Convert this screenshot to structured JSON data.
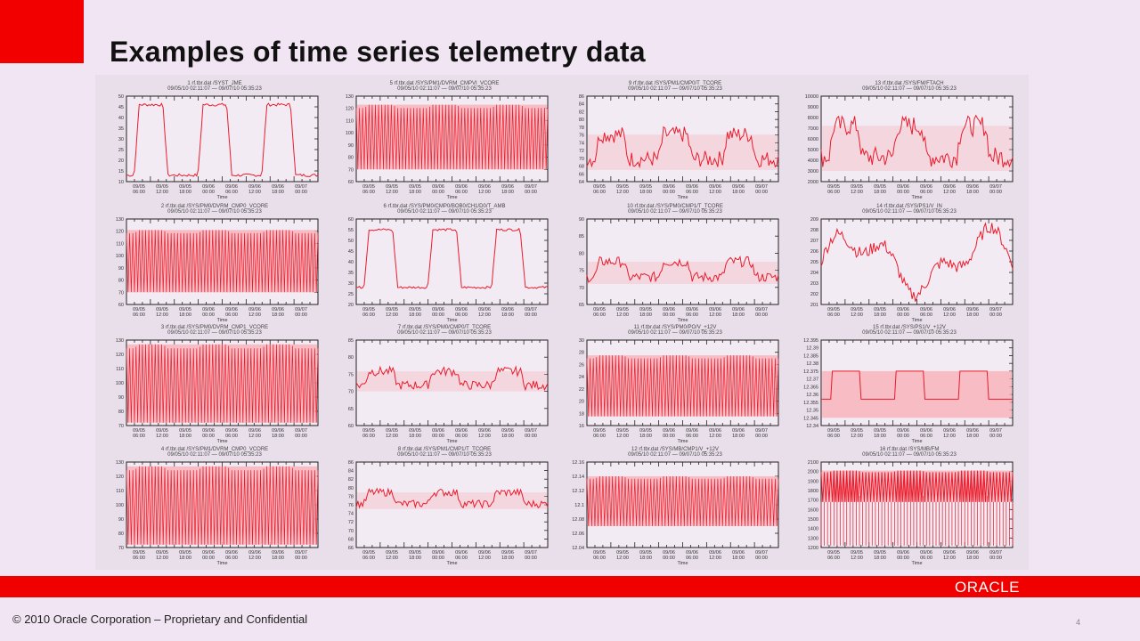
{
  "slide": {
    "title": "Examples of time series telemetry data",
    "footer": "© 2010 Oracle Corporation – Proprietary and Confidential",
    "logo": "ORACLE",
    "page_number": "4",
    "accent_color": "#f10000"
  },
  "chart_data": [
    {
      "id": 1,
      "type": "line",
      "title": "1  rf.tbr.dat  /SYST_JME",
      "subtitle": "09/05/10 02:11:07  —  09/07/10 05:35:23",
      "xlabel": "Time",
      "ylim": [
        10,
        50
      ],
      "yticks": [
        "10",
        "15",
        "20",
        "25",
        "30",
        "35",
        "40",
        "45",
        "50"
      ],
      "xticks": [
        "09/05 06:00",
        "09/05 12:00",
        "09/05 18:00",
        "09/06 00:00",
        "09/06 06:00",
        "09/06 12:00",
        "09/06 18:00",
        "09/07 00:00"
      ],
      "pattern": "square",
      "low": 13,
      "high": 46
    },
    {
      "id": 5,
      "type": "line",
      "title": "5  rf.tbr.dat  /SYS/PM1/DVRM_CMPVI_VCORE",
      "subtitle": "09/05/10 02:11:07  —  09/07/10 05:35:23",
      "xlabel": "Time",
      "ylim": [
        60,
        130
      ],
      "yticks": [
        "60",
        "70",
        "80",
        "90",
        "100",
        "110",
        "120",
        "130"
      ],
      "xticks": [
        "09/05 06:00",
        "09/05 12:00",
        "09/05 18:00",
        "09/06 00:00",
        "09/06 06:00",
        "09/06 12:00",
        "09/06 18:00",
        "09/07 00:00"
      ],
      "pattern": "dense",
      "low": 70,
      "high": 123
    },
    {
      "id": 9,
      "type": "line",
      "title": "9  rf.tbr.dat  /SYS/PM1/CMP0/T_TCORE",
      "subtitle": "09/05/10 02:11:07  —  09/07/10 05:35:23",
      "xlabel": "Time",
      "ylim": [
        64,
        86
      ],
      "yticks": [
        "64",
        "66",
        "68",
        "70",
        "72",
        "74",
        "76",
        "78",
        "80",
        "82",
        "84",
        "86"
      ],
      "xticks": [
        "09/05 06:00",
        "09/05 12:00",
        "09/05 18:00",
        "09/06 00:00",
        "09/06 06:00",
        "09/06 12:00",
        "09/06 18:00",
        "09/07 00:00"
      ],
      "pattern": "band",
      "low": 67,
      "high": 81
    },
    {
      "id": 13,
      "type": "line",
      "title": "13  rf.tbr.dat  /SYS/FM/FTACH",
      "subtitle": "09/05/10 02:11:07  —  09/07/10 05:35:23",
      "xlabel": "Time",
      "ylim": [
        2000,
        10000
      ],
      "yticks": [
        "2000",
        "3000",
        "4000",
        "5000",
        "6000",
        "7000",
        "8000",
        "9000",
        "10000"
      ],
      "xticks": [
        "09/05 06:00",
        "09/05 12:00",
        "09/05 18:00",
        "09/06 00:00",
        "09/06 06:00",
        "09/06 12:00",
        "09/06 18:00",
        "09/07 00:00"
      ],
      "pattern": "band",
      "low": 3000,
      "high": 9500
    },
    {
      "id": 2,
      "type": "line",
      "title": "2  rf.tbr.dat  /SYS/PM0/DVRM_CMP0_VCORE",
      "subtitle": "09/05/10 02:11:07  —  09/07/10 05:35:23",
      "xlabel": "Time",
      "ylim": [
        60,
        130
      ],
      "yticks": [
        "60",
        "70",
        "80",
        "90",
        "100",
        "110",
        "120",
        "130"
      ],
      "xticks": [
        "09/05 06:00",
        "09/05 12:00",
        "09/05 18:00",
        "09/06 00:00",
        "09/06 06:00",
        "09/06 12:00",
        "09/06 18:00",
        "09/07 00:00"
      ],
      "pattern": "dense",
      "low": 70,
      "high": 121
    },
    {
      "id": 6,
      "type": "line",
      "title": "6  rf.tbr.dat  /SYS/PM0/CMP0/BOB0/CH1/D0/T_AMB",
      "subtitle": "09/05/10 02:11:07  —  09/07/10 05:35:23",
      "xlabel": "Time",
      "ylim": [
        20,
        60
      ],
      "yticks": [
        "20",
        "25",
        "30",
        "35",
        "40",
        "45",
        "50",
        "55",
        "60"
      ],
      "xticks": [
        "09/05 06:00",
        "09/05 12:00",
        "09/05 18:00",
        "09/06 00:00",
        "09/06 06:00",
        "09/06 12:00",
        "09/06 18:00",
        "09/07 00:00"
      ],
      "pattern": "square",
      "low": 28,
      "high": 55
    },
    {
      "id": 10,
      "type": "line",
      "title": "10  rf.tbr.dat  /SYS/PM0/CMP1/T_TCORE",
      "subtitle": "09/05/10 02:11:07  —  09/07/10 05:35:23",
      "xlabel": "Time",
      "ylim": [
        65,
        90
      ],
      "yticks": [
        "65",
        "70",
        "75",
        "80",
        "85",
        "90"
      ],
      "xticks": [
        "09/05 06:00",
        "09/05 12:00",
        "09/05 18:00",
        "09/06 00:00",
        "09/06 06:00",
        "09/06 12:00",
        "09/06 18:00",
        "09/07 00:00"
      ],
      "pattern": "band",
      "low": 71,
      "high": 81
    },
    {
      "id": 14,
      "type": "line",
      "title": "14  rf.tbr.dat  /SYS/PS1/V_IN",
      "subtitle": "09/05/10 02:11:07  —  09/07/10 05:35:23",
      "xlabel": "Time",
      "ylim": [
        201,
        209
      ],
      "yticks": [
        "201",
        "202",
        "203",
        "204",
        "205",
        "206",
        "207",
        "208",
        "209"
      ],
      "xticks": [
        "09/05 06:00",
        "09/05 12:00",
        "09/05 18:00",
        "09/06 00:00",
        "09/06 06:00",
        "09/06 12:00",
        "09/06 18:00",
        "09/07 00:00"
      ],
      "pattern": "noise",
      "low": 202,
      "high": 208
    },
    {
      "id": 3,
      "type": "line",
      "title": "3  rf.tbr.dat  /SYS/PM0/DVRM_CMP1_VCORE",
      "subtitle": "09/05/10 02:11:07  —  09/07/10 05:35:23",
      "xlabel": "Time",
      "ylim": [
        70,
        130
      ],
      "yticks": [
        "70",
        "80",
        "90",
        "100",
        "110",
        "120",
        "130"
      ],
      "xticks": [
        "09/05 06:00",
        "09/05 12:00",
        "09/05 18:00",
        "09/06 00:00",
        "09/06 06:00",
        "09/06 12:00",
        "09/06 18:00",
        "09/07 00:00"
      ],
      "pattern": "dense",
      "low": 72,
      "high": 127
    },
    {
      "id": 7,
      "type": "line",
      "title": "7  rf.tbr.dat  /SYS/PM0/CMP0/T_TCORE",
      "subtitle": "09/05/10 02:11:07  —  09/07/10 05:35:23",
      "xlabel": "Time",
      "ylim": [
        60,
        85
      ],
      "yticks": [
        "60",
        "65",
        "70",
        "75",
        "80",
        "85"
      ],
      "xticks": [
        "09/05 06:00",
        "09/05 12:00",
        "09/05 18:00",
        "09/06 00:00",
        "09/06 06:00",
        "09/06 12:00",
        "09/06 18:00",
        "09/07 00:00"
      ],
      "pattern": "band",
      "low": 70,
      "high": 79
    },
    {
      "id": 11,
      "type": "line",
      "title": "11  rf.tbr.dat  /SYS/PM0/PO/V_+12V",
      "subtitle": "09/05/10 02:11:07  —  09/07/10 05:35:23",
      "xlabel": "Time",
      "ylim": [
        16,
        30
      ],
      "yticks": [
        "16",
        "18",
        "20",
        "22",
        "24",
        "26",
        "28",
        "30"
      ],
      "xticks": [
        "09/05 06:00",
        "09/05 12:00",
        "09/05 18:00",
        "09/06 00:00",
        "09/06 06:00",
        "09/06 12:00",
        "09/06 18:00",
        "09/07 00:00"
      ],
      "pattern": "dense",
      "low": 17.5,
      "high": 27.5
    },
    {
      "id": 15,
      "type": "line",
      "title": "15  rf.tbr.dat  /SYS/PS1/V_+12V",
      "subtitle": "09/05/10 02:11:07  —  09/07/10 05:35:23",
      "xlabel": "Time",
      "ylim": [
        12.34,
        12.395
      ],
      "yticks": [
        "12.34",
        "12.345",
        "12.35",
        "12.355",
        "12.36",
        "12.365",
        "12.37",
        "12.375",
        "12.38",
        "12.385",
        "12.39",
        "12.395"
      ],
      "xticks": [
        "09/05 06:00",
        "09/05 12:00",
        "09/05 18:00",
        "09/06 00:00",
        "09/06 06:00",
        "09/06 12:00",
        "09/06 18:00",
        "09/07 00:00"
      ],
      "pattern": "step",
      "low": 12.345,
      "high": 12.375
    },
    {
      "id": 4,
      "type": "line",
      "title": "4  rf.tbr.dat  /SYS/PM1/DVRM_CMP0_VCORE",
      "subtitle": "09/05/10 02:11:07  —  09/07/10 05:35:23",
      "xlabel": "Time",
      "ylim": [
        70,
        130
      ],
      "yticks": [
        "70",
        "80",
        "90",
        "100",
        "110",
        "120",
        "130"
      ],
      "xticks": [
        "09/05 06:00",
        "09/05 12:00",
        "09/05 18:00",
        "09/06 00:00",
        "09/06 06:00",
        "09/06 12:00",
        "09/06 18:00",
        "09/07 00:00"
      ],
      "pattern": "dense",
      "low": 72,
      "high": 127
    },
    {
      "id": 8,
      "type": "line",
      "title": "8  rf.tbr.dat  /SYS/PM1/CMP1/T_TCORE",
      "subtitle": "09/05/10 02:11:07  —  09/07/10 05:35:23",
      "xlabel": "Time",
      "ylim": [
        66,
        86
      ],
      "yticks": [
        "66",
        "68",
        "70",
        "72",
        "74",
        "76",
        "78",
        "80",
        "82",
        "84",
        "86"
      ],
      "xticks": [
        "09/05 06:00",
        "09/05 12:00",
        "09/05 18:00",
        "09/06 00:00",
        "09/06 06:00",
        "09/06 12:00",
        "09/06 18:00",
        "09/07 00:00"
      ],
      "pattern": "band",
      "low": 75,
      "high": 81
    },
    {
      "id": 12,
      "type": "line",
      "title": "12  rf.tbr.dat  /SYS/MB/CMP1/V_+12V",
      "subtitle": "09/05/10 02:11:07  —  09/07/10 05:35:23",
      "xlabel": "Time",
      "ylim": [
        12.04,
        12.16
      ],
      "yticks": [
        "12.04",
        "12.06",
        "12.08",
        "12.1",
        "12.12",
        "12.14",
        "12.16"
      ],
      "xticks": [
        "09/05 06:00",
        "09/05 12:00",
        "09/05 18:00",
        "09/06 00:00",
        "09/06 06:00",
        "09/06 12:00",
        "09/06 18:00",
        "09/07 00:00"
      ],
      "pattern": "dense",
      "low": 12.07,
      "high": 12.14
    },
    {
      "id": 16,
      "type": "line",
      "title": "16  rf.tbr.dat  /SYS/MB/FM",
      "subtitle": "09/05/10 02:11:07  —  09/07/10 05:35:23",
      "xlabel": "Time",
      "ylim": [
        1200,
        2100
      ],
      "yticks": [
        "1200",
        "1300",
        "1400",
        "1500",
        "1600",
        "1700",
        "1800",
        "1900",
        "2000",
        "2100"
      ],
      "xticks": [
        "09/05 06:00",
        "09/05 12:00",
        "09/05 18:00",
        "09/06 00:00",
        "09/06 06:00",
        "09/06 12:00",
        "09/06 18:00",
        "09/07 00:00"
      ],
      "pattern": "square-dense",
      "low": 1680,
      "high": 2010
    }
  ]
}
